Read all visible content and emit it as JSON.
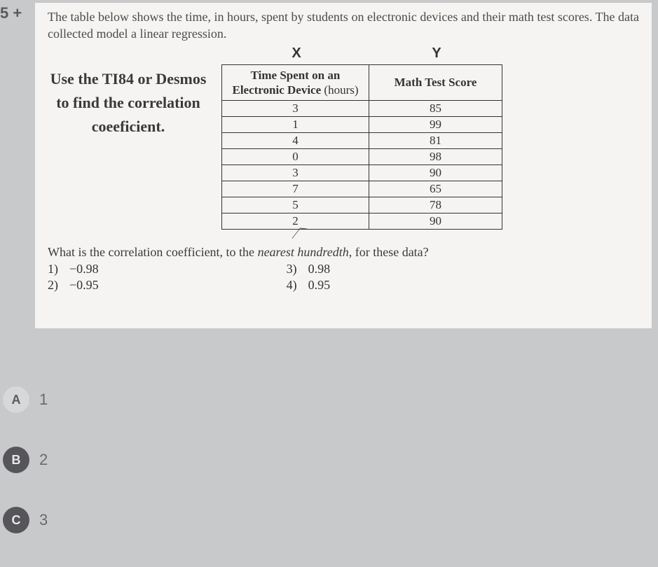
{
  "question_number": "5 +",
  "intro": "The table below shows the time, in hours, spent by students on electronic devices and their math test scores.  The data collected model a linear regression.",
  "axis_labels": {
    "x": "X",
    "y": "Y"
  },
  "instruction": "Use the TI84 or Desmos to find the correlation coeeficient.",
  "table": {
    "header_x_line1": "Time Spent on an",
    "header_x_line2_a": "Electronic Device",
    "header_x_line2_b": "(hours)",
    "header_y": "Math Test Score",
    "rows": [
      {
        "x": "3",
        "y": "85"
      },
      {
        "x": "1",
        "y": "99"
      },
      {
        "x": "4",
        "y": "81"
      },
      {
        "x": "0",
        "y": "98"
      },
      {
        "x": "3",
        "y": "90"
      },
      {
        "x": "7",
        "y": "65"
      },
      {
        "x": "5",
        "y": "78"
      },
      {
        "x": "2",
        "y": "90"
      }
    ],
    "border_color": "#333333",
    "background_color": "#f5f4f2"
  },
  "prompt_a": "What is the correlation coefficient, to the ",
  "prompt_em": "nearest hundredth",
  "prompt_b": ", for these data?",
  "options": [
    {
      "n": "1)",
      "v": "−0.98"
    },
    {
      "n": "2)",
      "v": "−0.95"
    },
    {
      "n": "3)",
      "v": "0.98"
    },
    {
      "n": "4)",
      "v": "0.95"
    }
  ],
  "answers": [
    {
      "letter": "A",
      "label": "1",
      "style": "light"
    },
    {
      "letter": "B",
      "label": "2",
      "style": "dark"
    },
    {
      "letter": "C",
      "label": "3",
      "style": "dark"
    }
  ],
  "colors": {
    "page_bg": "#c8c9cb",
    "card_bg": "#f5f4f2",
    "text": "#3a3a3a",
    "muted": "#6a6a6c",
    "circle_light_bg": "#d7d8da",
    "circle_light_fg": "#5b5b5d",
    "circle_dark_bg": "#56565a",
    "circle_dark_fg": "#e8e8ea"
  }
}
